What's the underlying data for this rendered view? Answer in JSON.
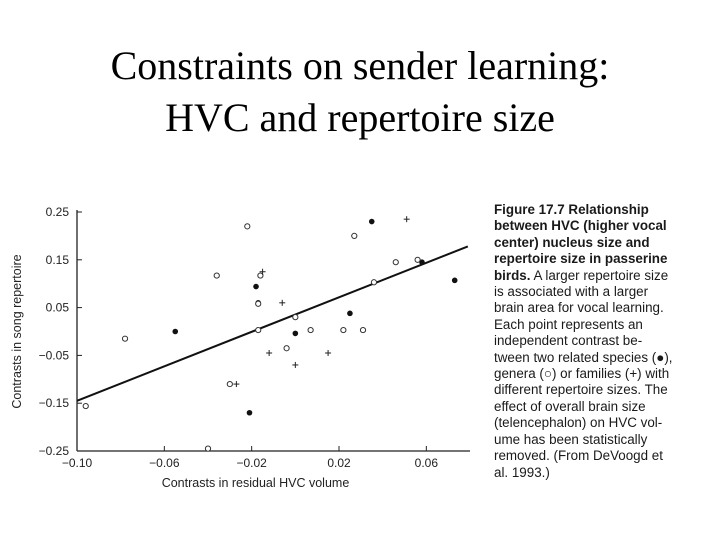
{
  "slide": {
    "title_line1": "Constraints on sender learning:",
    "title_line2": "HVC and repertoire size"
  },
  "caption": {
    "bold_lines": [
      "Figure 17.7    Relationship",
      "between HVC (higher vocal",
      "center) nucleus size and",
      "repertoire size in passerine",
      "birds."
    ],
    "bold_last_suffix": " A larger repertoire size",
    "normal_lines": [
      "is associated with a larger",
      "brain area for vocal learning.",
      "Each point represents an",
      "independent contrast be-",
      "tween two related species (●),",
      "genera (○) or families (+) with",
      "different repertoire sizes. The",
      "effect of overall brain size",
      "(telencephalon) on HVC vol-",
      "ume has been statistically",
      "removed. (From DeVoogd et",
      "al. 1993.)"
    ]
  },
  "chart_data": {
    "type": "scatter",
    "xlabel": "Contrasts in residual HVC volume",
    "ylabel": "Contrasts in song repertoire",
    "xlim": [
      -0.1,
      0.08
    ],
    "ylim": [
      -0.25,
      0.25
    ],
    "xticks": [
      "−0.10",
      "−0.06",
      "−0.02",
      "0.02",
      "0.06"
    ],
    "xtick_values": [
      -0.1,
      -0.06,
      -0.02,
      0.02,
      0.06
    ],
    "yticks": [
      "0.25",
      "0.15",
      "0.05",
      "−0.05",
      "−0.15",
      "−0.25"
    ],
    "ytick_values": [
      0.25,
      0.15,
      0.05,
      -0.05,
      -0.15,
      -0.25
    ],
    "regression_line": {
      "x": [
        -0.1,
        0.079
      ],
      "y": [
        -0.145,
        0.178
      ]
    },
    "series": [
      {
        "marker": "filled-circle",
        "points": [
          [
            -0.055,
            0.0
          ],
          [
            -0.018,
            0.094
          ],
          [
            -0.017,
            0.06
          ],
          [
            -0.021,
            -0.17
          ],
          [
            0.0,
            -0.004
          ],
          [
            0.025,
            0.038
          ],
          [
            0.035,
            0.23
          ],
          [
            0.058,
            0.145
          ],
          [
            0.073,
            0.107
          ]
        ]
      },
      {
        "marker": "open-circle",
        "points": [
          [
            -0.096,
            -0.156
          ],
          [
            -0.078,
            -0.015
          ],
          [
            -0.036,
            0.117
          ],
          [
            -0.04,
            -0.245
          ],
          [
            -0.03,
            -0.11
          ],
          [
            -0.022,
            0.22
          ],
          [
            -0.017,
            0.058
          ],
          [
            -0.016,
            0.117
          ],
          [
            -0.017,
            0.003
          ],
          [
            -0.004,
            -0.035
          ],
          [
            0.0,
            0.03
          ],
          [
            0.007,
            0.003
          ],
          [
            0.022,
            0.003
          ],
          [
            0.027,
            0.2
          ],
          [
            0.031,
            0.003
          ],
          [
            0.036,
            0.103
          ],
          [
            0.046,
            0.145
          ],
          [
            0.056,
            0.15
          ]
        ]
      },
      {
        "marker": "plus",
        "points": [
          [
            -0.015,
            0.125
          ],
          [
            -0.027,
            -0.11
          ],
          [
            -0.012,
            -0.045
          ],
          [
            -0.006,
            0.06
          ],
          [
            0.0,
            -0.07
          ],
          [
            0.015,
            -0.045
          ],
          [
            0.051,
            0.235
          ]
        ]
      }
    ]
  }
}
